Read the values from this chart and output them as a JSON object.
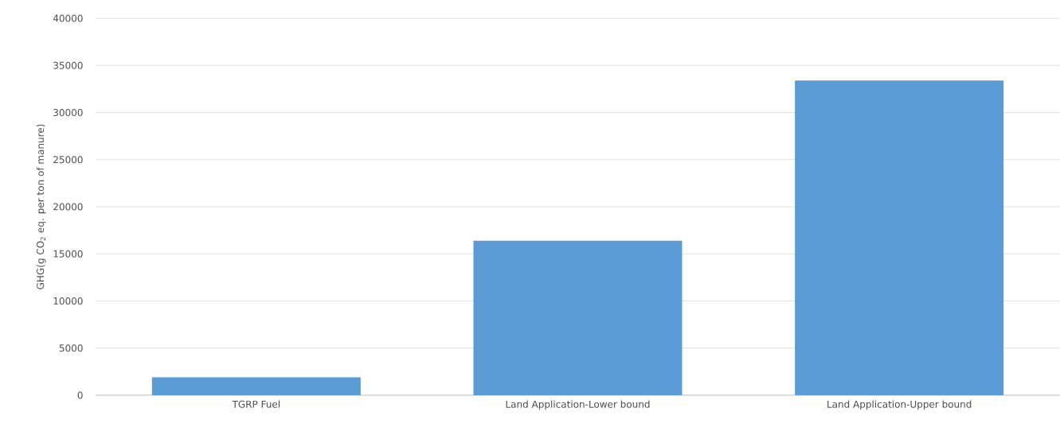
{
  "chart_data": {
    "type": "bar",
    "ylabel": "GHG(g CO$_{2}$ eq. per ton of manure)",
    "categories": [
      "TGRP Fuel",
      "Land Application-Lower bound",
      "Land Application-Upper bound"
    ],
    "values": [
      1900,
      16400,
      33400
    ],
    "color": "#5b9bd5",
    "ylim": [
      0,
      40000
    ],
    "yticks": [
      0,
      5000,
      10000,
      15000,
      20000,
      25000,
      30000,
      35000,
      40000
    ],
    "grid": "y"
  }
}
